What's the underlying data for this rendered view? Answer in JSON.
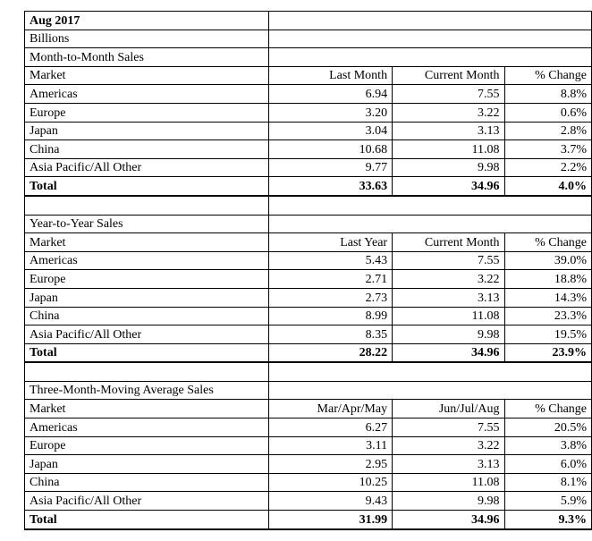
{
  "title": "Aug 2017",
  "units": "Billions",
  "sections": [
    {
      "name": "Month-to-Month Sales",
      "headers": [
        "Market",
        "Last Month",
        "Current Month",
        "% Change"
      ],
      "rows": [
        [
          "Americas",
          "6.94",
          "7.55",
          "8.8%"
        ],
        [
          "Europe",
          "3.20",
          "3.22",
          "0.6%"
        ],
        [
          "Japan",
          "3.04",
          "3.13",
          "2.8%"
        ],
        [
          "China",
          "10.68",
          "11.08",
          "3.7%"
        ],
        [
          "Asia Pacific/All Other",
          "9.77",
          "9.98",
          "2.2%"
        ]
      ],
      "total": [
        "Total",
        "33.63",
        "34.96",
        "4.0%"
      ]
    },
    {
      "name": "Year-to-Year Sales",
      "headers": [
        "Market",
        "Last Year",
        "Current Month",
        "% Change"
      ],
      "rows": [
        [
          "Americas",
          "5.43",
          "7.55",
          "39.0%"
        ],
        [
          "Europe",
          "2.71",
          "3.22",
          "18.8%"
        ],
        [
          "Japan",
          "2.73",
          "3.13",
          "14.3%"
        ],
        [
          "China",
          "8.99",
          "11.08",
          "23.3%"
        ],
        [
          "Asia Pacific/All Other",
          "8.35",
          "9.98",
          "19.5%"
        ]
      ],
      "total": [
        "Total",
        "28.22",
        "34.96",
        "23.9%"
      ]
    },
    {
      "name": "Three-Month-Moving Average Sales",
      "headers": [
        "Market",
        "Mar/Apr/May",
        "Jun/Jul/Aug",
        "% Change"
      ],
      "rows": [
        [
          "Americas",
          "6.27",
          "7.55",
          "20.5%"
        ],
        [
          "Europe",
          "3.11",
          "3.22",
          "3.8%"
        ],
        [
          "Japan",
          "2.95",
          "3.13",
          "6.0%"
        ],
        [
          "China",
          "10.25",
          "11.08",
          "8.1%"
        ],
        [
          "Asia Pacific/All Other",
          "9.43",
          "9.98",
          "5.9%"
        ]
      ],
      "total": [
        "Total",
        "31.99",
        "34.96",
        "9.3%"
      ]
    }
  ]
}
